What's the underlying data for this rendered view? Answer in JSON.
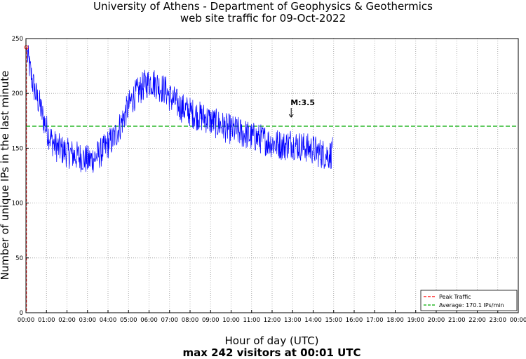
{
  "chart_data": {
    "type": "line",
    "title": "University of Athens - Department of Geophysics & Geothermics",
    "subtitle": "web site traffic for 09-Oct-2022",
    "xlabel": "Hour of day (UTC)",
    "xlabel2": "max 242 visitors at 00:01 UTC",
    "ylabel": "Number of unique IPs in the last minute",
    "xlim": [
      0,
      24
    ],
    "ylim": [
      0,
      250
    ],
    "grid": true,
    "x_ticks": [
      "00:00",
      "01:00",
      "02:00",
      "03:00",
      "04:00",
      "05:00",
      "06:00",
      "07:00",
      "08:00",
      "09:00",
      "10:00",
      "11:00",
      "12:00",
      "13:00",
      "14:00",
      "15:00",
      "16:00",
      "17:00",
      "18:00",
      "19:00",
      "20:00",
      "21:00",
      "22:00",
      "23:00",
      "00:00"
    ],
    "y_ticks": [
      0,
      50,
      100,
      150,
      200,
      250
    ],
    "series": [
      {
        "color": "#0000ff",
        "x": [
          0.02,
          0.1,
          0.2,
          0.3,
          0.4,
          0.5,
          0.6,
          0.7,
          0.8,
          0.9,
          1.0,
          1.1,
          1.2,
          1.3,
          1.4,
          1.5,
          1.6,
          1.7,
          1.8,
          1.9,
          2.0,
          2.1,
          2.2,
          2.3,
          2.4,
          2.5,
          2.6,
          2.7,
          2.8,
          2.9,
          3.0,
          3.1,
          3.2,
          3.3,
          3.4,
          3.5,
          3.6,
          3.7,
          3.8,
          3.9,
          4.0,
          4.1,
          4.2,
          4.3,
          4.4,
          4.5,
          4.6,
          4.7,
          4.8,
          4.9,
          5.0,
          5.1,
          5.2,
          5.3,
          5.4,
          5.5,
          5.6,
          5.7,
          5.8,
          5.9,
          6.0,
          6.1,
          6.2,
          6.3,
          6.4,
          6.5,
          6.6,
          6.7,
          6.8,
          6.9,
          7.0,
          7.1,
          7.2,
          7.3,
          7.4,
          7.5,
          7.6,
          7.7,
          7.8,
          7.9,
          8.0,
          8.1,
          8.2,
          8.3,
          8.4,
          8.5,
          8.6,
          8.7,
          8.8,
          8.9,
          9.0,
          9.1,
          9.2,
          9.3,
          9.4,
          9.5,
          9.6,
          9.7,
          9.8,
          9.9,
          10.0,
          10.1,
          10.2,
          10.3,
          10.4,
          10.5,
          10.6,
          10.7,
          10.8,
          10.9,
          11.0,
          11.1,
          11.2,
          11.3,
          11.4,
          11.5,
          11.6,
          11.7,
          11.8,
          11.9,
          12.0,
          12.1,
          12.2,
          12.3,
          12.4,
          12.5,
          12.6,
          12.7,
          12.8,
          12.9,
          13.0,
          13.1,
          13.2,
          13.3,
          13.4,
          13.5,
          13.6,
          13.7,
          13.8,
          13.9,
          14.0,
          14.1,
          14.2,
          14.3,
          14.4,
          14.5,
          14.6,
          14.7,
          14.8,
          14.9,
          14.95
        ],
        "y": [
          242,
          232,
          222,
          212,
          205,
          198,
          193,
          188,
          180,
          174,
          168,
          163,
          159,
          156,
          153,
          151,
          150,
          149,
          148,
          147,
          146,
          145,
          145,
          144,
          143,
          143,
          142,
          142,
          141,
          140,
          139,
          139,
          140,
          141,
          142,
          144,
          145,
          147,
          149,
          151,
          154,
          156,
          157,
          160,
          163,
          167,
          171,
          175,
          180,
          184,
          188,
          192,
          195,
          198,
          200,
          202,
          204,
          206,
          208,
          209,
          210,
          211,
          210,
          209,
          208,
          206,
          205,
          204,
          203,
          200,
          197,
          195,
          194,
          192,
          190,
          188,
          187,
          186,
          185,
          184,
          183,
          182,
          181,
          180,
          180,
          179,
          178,
          178,
          177,
          176,
          175,
          174,
          173,
          172,
          172,
          171,
          170,
          169,
          168,
          168,
          167,
          166,
          166,
          165,
          165,
          164,
          163,
          163,
          162,
          161,
          160,
          160,
          160,
          159,
          159,
          158,
          158,
          157,
          156,
          155,
          155,
          154,
          154,
          154,
          153,
          153,
          152,
          153,
          154,
          155,
          154,
          153,
          153,
          152,
          152,
          151,
          151,
          150,
          150,
          149,
          149,
          148,
          147,
          146,
          145,
          145,
          144,
          144,
          144,
          145,
          160
        ]
      }
    ],
    "average": {
      "value": 170.1,
      "color": "#00aa00"
    },
    "peak": {
      "x": 0.02,
      "y": 242,
      "color": "#ff0000"
    },
    "annotation": {
      "text": "M:3.5",
      "x": 12.93
    },
    "legend": {
      "position": "bottom-right",
      "entries": [
        "Peak Traffic",
        "Average: 170.1 IPs/min"
      ]
    }
  }
}
